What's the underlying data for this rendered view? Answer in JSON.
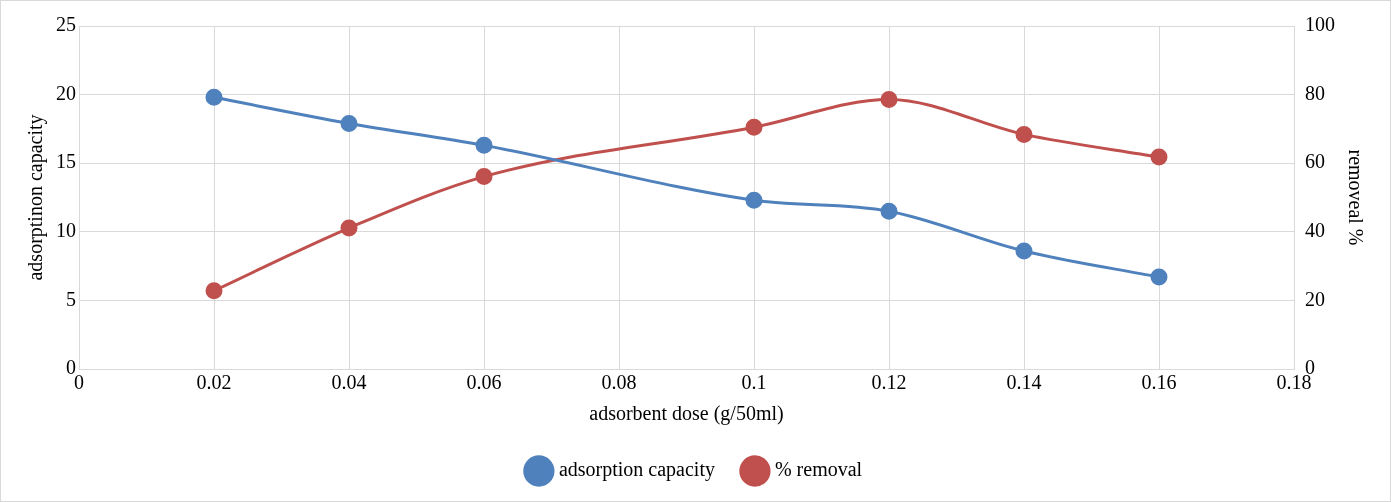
{
  "chart_data": {
    "type": "line",
    "xlabel": "adsorbent dose (g/50ml)",
    "ylabel": "adsorptinon capacity",
    "y2label": "removeal %",
    "x": [
      0.02,
      0.04,
      0.06,
      0.1,
      0.12,
      0.14,
      0.16
    ],
    "series": [
      {
        "name": "adsorption capacity",
        "color": "#4f81bd",
        "values": [
          19.8,
          17.9,
          16.3,
          12.3,
          11.5,
          8.6,
          6.7
        ]
      },
      {
        "name": "% removal",
        "color": "#c0504d",
        "axis": "y2",
        "values": [
          22.8,
          41.1,
          56.1,
          70.5,
          78.6,
          68.4,
          61.8
        ]
      }
    ],
    "xlim": [
      0,
      0.18
    ],
    "xticks": [
      0,
      0.02,
      0.04,
      0.06,
      0.08,
      0.1,
      0.12,
      0.14,
      0.16,
      0.18
    ],
    "ylim": [
      0,
      25
    ],
    "yticks": [
      0,
      5,
      10,
      15,
      20,
      25
    ],
    "y2lim": [
      0,
      100
    ],
    "y2ticks": [
      0,
      20,
      40,
      60,
      80,
      100
    ],
    "grid": true,
    "legend": "bottom",
    "marker": "circle"
  }
}
